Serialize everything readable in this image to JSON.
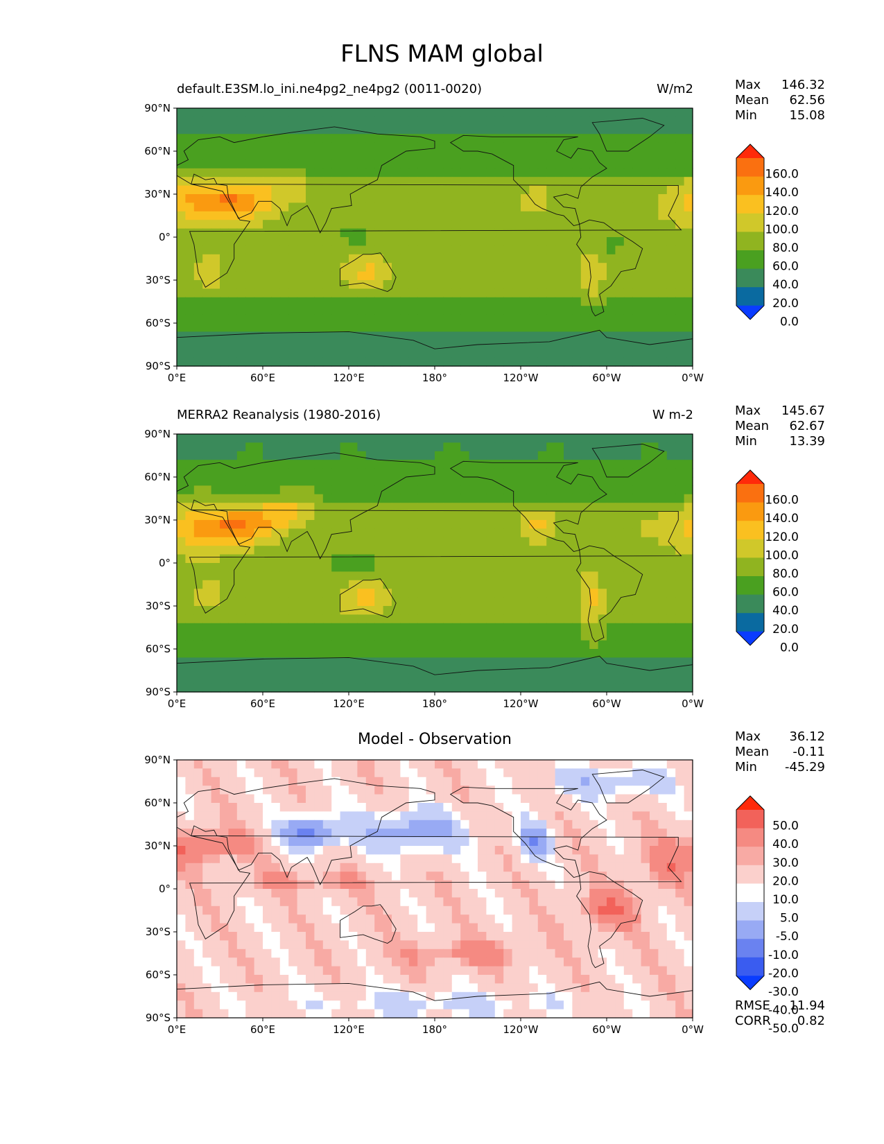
{
  "figure_title": "FLNS MAM global",
  "axes": {
    "lat_ticks": [
      "90°N",
      "60°N",
      "30°N",
      "0°",
      "30°S",
      "60°S",
      "90°S"
    ],
    "lon_ticks": [
      "0°E",
      "60°E",
      "120°E",
      "180°",
      "120°W",
      "60°W",
      "0°W"
    ]
  },
  "colors": {
    "flns_levels": [
      "#0a3cff",
      "#0a6aa0",
      "#3a8a5a",
      "#4aa020",
      "#90b420",
      "#d0c82a",
      "#fac020",
      "#fa9a10",
      "#fa7010",
      "#ff2a0a"
    ],
    "diff_levels": [
      "#0a3cff",
      "#3a5cf0",
      "#6a82f0",
      "#98aaf4",
      "#c6d0f8",
      "#ffffff",
      "#fbd0cc",
      "#f8aaa4",
      "#f58a82",
      "#f2625a",
      "#ff2a0a"
    ]
  },
  "chart_data": [
    {
      "type": "heatmap",
      "panel": "test",
      "title_left": "default.E3SM.lo_ini.ne4pg2_ne4pg2 (0011-0020)",
      "title_right": "W/m2",
      "stats": [
        {
          "label": "Max",
          "value": "146.32"
        },
        {
          "label": "Mean",
          "value": "62.56"
        },
        {
          "label": "Min",
          "value": "15.08"
        }
      ],
      "colorbar_labels": [
        "160.0",
        "140.0",
        "120.0",
        "100.0",
        "80.0",
        "60.0",
        "40.0",
        "20.0",
        "0.0"
      ],
      "xlim": [
        0,
        360
      ],
      "ylim": [
        -90,
        90
      ]
    },
    {
      "type": "heatmap",
      "panel": "reference",
      "title_left": "MERRA2 Reanalysis (1980-2016)",
      "title_right": "W m-2",
      "stats": [
        {
          "label": "Max",
          "value": "145.67"
        },
        {
          "label": "Mean",
          "value": "62.67"
        },
        {
          "label": "Min",
          "value": "13.39"
        }
      ],
      "colorbar_labels": [
        "160.0",
        "140.0",
        "120.0",
        "100.0",
        "80.0",
        "60.0",
        "40.0",
        "20.0",
        "0.0"
      ],
      "xlim": [
        0,
        360
      ],
      "ylim": [
        -90,
        90
      ]
    },
    {
      "type": "heatmap",
      "panel": "difference",
      "title_center": "Model - Observation",
      "stats": [
        {
          "label": "Max",
          "value": "36.12"
        },
        {
          "label": "Mean",
          "value": "-0.11"
        },
        {
          "label": "Min",
          "value": "-45.29"
        }
      ],
      "extra_stats": [
        {
          "label": "RMSE",
          "value": "11.94"
        },
        {
          "label": "CORR",
          "value": "0.82"
        }
      ],
      "colorbar_labels": [
        "50.0",
        "40.0",
        "30.0",
        "20.0",
        "10.0",
        "5.0",
        "-5.0",
        "-10.0",
        "-20.0",
        "-30.0",
        "-40.0",
        "-50.0"
      ],
      "xlim": [
        0,
        360
      ],
      "ylim": [
        -90,
        90
      ]
    }
  ]
}
